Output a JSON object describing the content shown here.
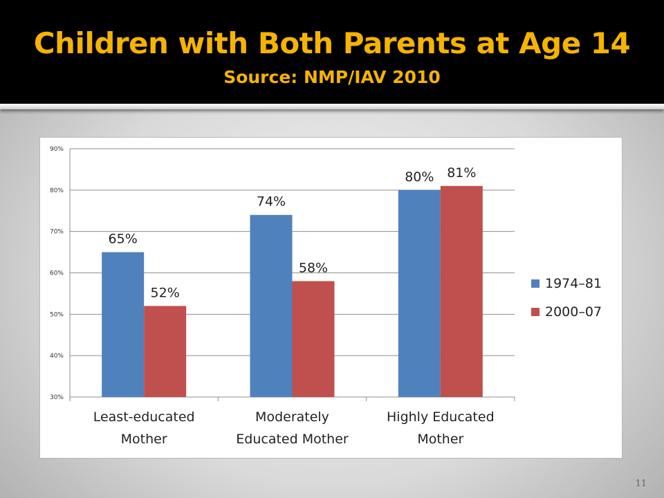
{
  "slide": {
    "title": "Children with Both Parents at Age 14",
    "subtitle": "Source: NMP/IAV 2010",
    "page_number": "11"
  },
  "colors": {
    "title": "#F6B400",
    "series_1": "#4F81BD",
    "series_2": "#C0504D",
    "gridline": "#8C8C8C"
  },
  "chart_data": {
    "type": "bar",
    "title": "",
    "xlabel": "",
    "ylabel": "",
    "categories": [
      [
        "Least-educated",
        "Mother"
      ],
      [
        "Moderately",
        "Educated Mother"
      ],
      [
        "Highly Educated",
        "Mother"
      ]
    ],
    "series": [
      {
        "name": "1974–81",
        "values": [
          65,
          74,
          80
        ],
        "labels": [
          "65%",
          "74%",
          "80%"
        ]
      },
      {
        "name": "2000–07",
        "values": [
          52,
          58,
          81
        ],
        "labels": [
          "52%",
          "58%",
          "81%"
        ]
      }
    ],
    "ylim": [
      30,
      90
    ],
    "yticks": [
      30,
      40,
      50,
      60,
      70,
      80,
      90
    ],
    "ytick_labels": [
      "30%",
      "40%",
      "50%",
      "60%",
      "70%",
      "80%",
      "90%"
    ],
    "grid": true,
    "legend_position": "right"
  }
}
